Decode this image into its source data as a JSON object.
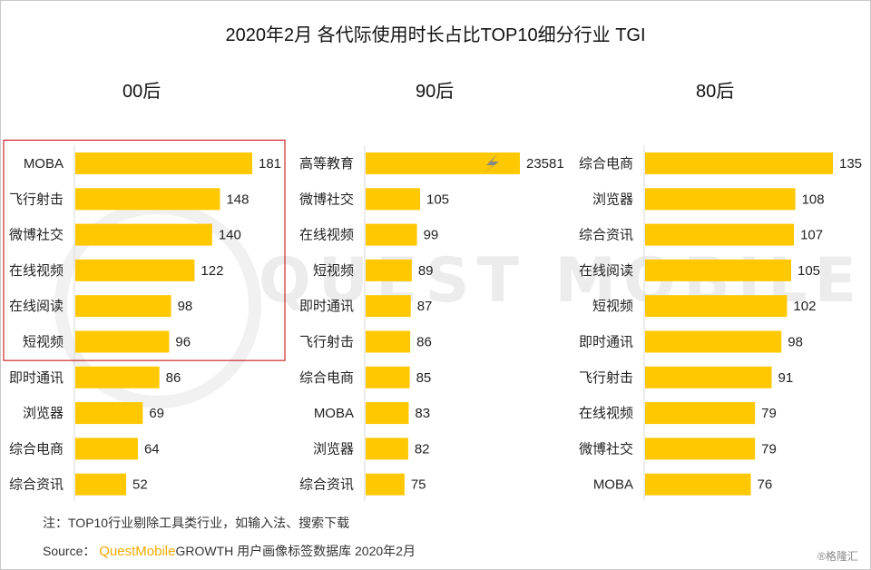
{
  "title": "2020年2月 各代际使用时长占比TOP10细分行业 TGI",
  "watermark": "QUEST MOBILE",
  "note": "注：TOP10行业剔除工具类行业，如输入法、搜索下载",
  "source": {
    "prefix": "Source：",
    "brand": "QuestMobile",
    "suffix": "GROWTH 用户画像标签数据库 2020年2月"
  },
  "logo": "®格隆汇",
  "colors": {
    "bar": "#FFC800",
    "highlight_box": "#c00000",
    "axis": "#d9d9d9"
  },
  "chart_data": [
    {
      "type": "bar",
      "orientation": "horizontal",
      "group": "00后",
      "categories": [
        "MOBA",
        "飞行射击",
        "微博社交",
        "在线视频",
        "在线阅读",
        "短视频",
        "即时通讯",
        "浏览器",
        "综合电商",
        "综合资讯"
      ],
      "values": [
        181,
        148,
        140,
        122,
        98,
        96,
        86,
        69,
        64,
        52
      ],
      "highlight_top_n": 6
    },
    {
      "type": "bar",
      "orientation": "horizontal",
      "group": "90后",
      "categories": [
        "高等教育",
        "微博社交",
        "在线视频",
        "短视频",
        "即时通讯",
        "飞行射击",
        "综合电商",
        "MOBA",
        "浏览器",
        "综合资讯"
      ],
      "values": [
        23581,
        105,
        99,
        89,
        87,
        86,
        85,
        83,
        82,
        75
      ],
      "axis_break_first": true
    },
    {
      "type": "bar",
      "orientation": "horizontal",
      "group": "80后",
      "categories": [
        "综合电商",
        "浏览器",
        "综合资讯",
        "在线阅读",
        "短视频",
        "即时通讯",
        "飞行射击",
        "在线视频",
        "微博社交",
        "MOBA"
      ],
      "values": [
        135,
        108,
        107,
        105,
        102,
        98,
        91,
        79,
        79,
        76
      ]
    }
  ]
}
